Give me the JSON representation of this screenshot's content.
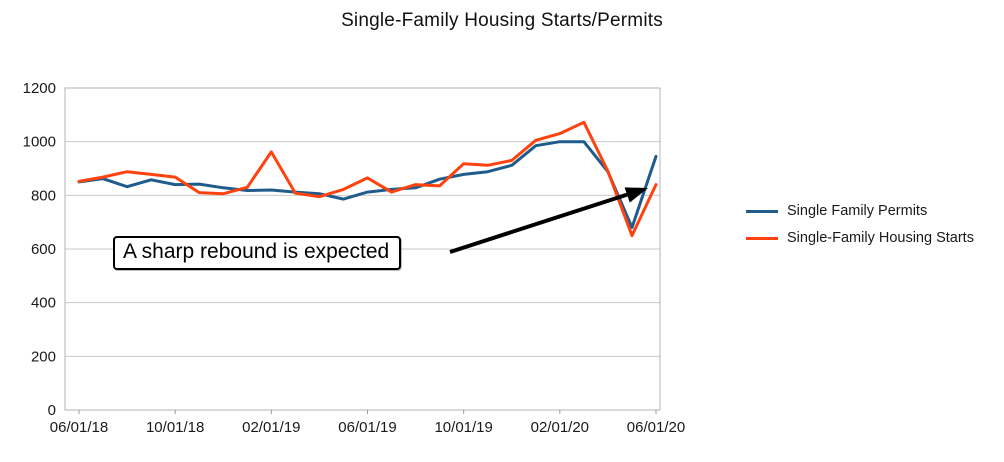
{
  "title": "Single-Family Housing Starts/Permits",
  "annotation": {
    "text": "A sharp rebound is expected"
  },
  "legend": [
    {
      "label": "Single Family Permits",
      "color": "#1F5C8B"
    },
    {
      "label": "Single-Family Housing Starts",
      "color": "#FF420E"
    }
  ],
  "chart_data": {
    "type": "line",
    "title": "Single-Family Housing Starts/Permits",
    "x": [
      "06/01/18",
      "07/01/18",
      "08/01/18",
      "09/01/18",
      "10/01/18",
      "11/01/18",
      "12/01/18",
      "01/01/19",
      "02/01/19",
      "03/01/19",
      "04/01/19",
      "05/01/19",
      "06/01/19",
      "07/01/19",
      "08/01/19",
      "09/01/19",
      "10/01/19",
      "11/01/19",
      "12/01/19",
      "01/01/20",
      "02/01/20",
      "03/01/20",
      "04/01/20",
      "05/01/20",
      "06/01/20"
    ],
    "x_tick_labels": [
      "06/01/18",
      "10/01/18",
      "02/01/19",
      "06/01/19",
      "10/01/19",
      "02/01/20",
      "06/01/20"
    ],
    "series": [
      {
        "name": "Single Family Permits",
        "color": "#1F5C8B",
        "values": [
          850,
          862,
          832,
          858,
          840,
          842,
          828,
          818,
          820,
          812,
          806,
          786,
          812,
          822,
          828,
          860,
          878,
          888,
          912,
          985,
          1000,
          1000,
          888,
          680,
          945
        ]
      },
      {
        "name": "Single-Family Housing Starts",
        "color": "#FF420E",
        "values": [
          852,
          868,
          888,
          878,
          868,
          810,
          806,
          830,
          962,
          808,
          795,
          822,
          865,
          812,
          840,
          835,
          918,
          912,
          930,
          1005,
          1030,
          1072,
          890,
          650,
          840
        ]
      }
    ],
    "ylim": [
      0,
      1200
    ],
    "y_ticks": [
      0,
      200,
      400,
      600,
      800,
      1000,
      1200
    ],
    "grid": true,
    "legend_position": "right",
    "annotation": "A sharp rebound is expected"
  }
}
